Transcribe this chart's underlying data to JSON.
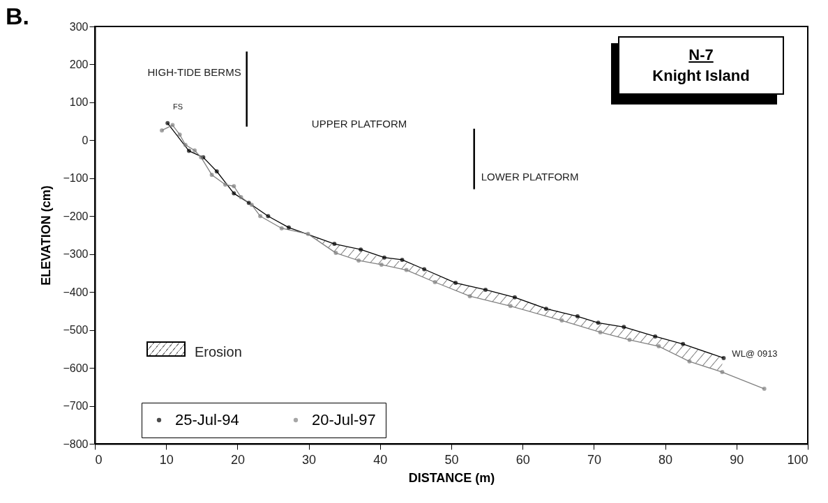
{
  "chart_data": {
    "type": "line",
    "title": "N-7",
    "subtitle": "Knight Island",
    "xlabel": "DISTANCE (m)",
    "ylabel": "ELEVATION (cm)",
    "xlim": [
      0,
      100
    ],
    "xticks": [
      0,
      10,
      20,
      30,
      40,
      50,
      60,
      70,
      80,
      90,
      100
    ],
    "ylim": [
      -800,
      300
    ],
    "yticks": [
      -800,
      -700,
      -600,
      -500,
      -400,
      -300,
      -200,
      -100,
      0,
      100,
      200,
      300
    ],
    "grid": false,
    "legend": "bottom left",
    "line_style": "solid",
    "series": [
      {
        "name": "25-Jul-94",
        "color": "#000000",
        "marker": "circle",
        "x": [
          10.2,
          13.2,
          15.2,
          17.1,
          19.5,
          21.6,
          24.3,
          27.2,
          33.6,
          37.3,
          40.6,
          43.1,
          46.2,
          50.6,
          54.8,
          58.9,
          63.3,
          67.7,
          70.6,
          74.2,
          78.6,
          82.5,
          88.2
        ],
        "values": [
          45,
          -28,
          -45,
          -82,
          -140,
          -165,
          -200,
          -230,
          -273,
          -288,
          -309,
          -315,
          -340,
          -376,
          -394,
          -414,
          -444,
          -464,
          -481,
          -492,
          -517,
          -537,
          -574
        ]
      },
      {
        "name": "20-Jul-97",
        "color": "#808080",
        "marker": "circle",
        "x": [
          9.4,
          10.9,
          11.9,
          12.7,
          14.0,
          14.9,
          16.4,
          18.3,
          19.5,
          20.5,
          22.0,
          23.2,
          26.2,
          29.9,
          33.8,
          37.0,
          40.2,
          43.7,
          47.7,
          52.6,
          58.3,
          65.5,
          70.9,
          75.0,
          79.1,
          83.4,
          88.0,
          93.9
        ],
        "values": [
          26,
          40,
          15,
          -12,
          -27,
          -45,
          -91,
          -117,
          -121,
          -150,
          -170,
          -200,
          -232,
          -247,
          -297,
          -317,
          -328,
          -342,
          -374,
          -411,
          -437,
          -475,
          -506,
          -526,
          -543,
          -583,
          -611,
          -655
        ],
        "lower": [
          null,
          null,
          null,
          null,
          null,
          null,
          null,
          null,
          null,
          null,
          null,
          null,
          null,
          -247,
          -297,
          -317,
          -328,
          -342,
          -374,
          -411,
          -437,
          -475,
          -506,
          -526,
          -543,
          -583,
          -611,
          null
        ],
        "upper": [
          null,
          null,
          null,
          null,
          null,
          null,
          null,
          null,
          null,
          null,
          null,
          null,
          null,
          -247,
          -275,
          -290,
          -309,
          -322,
          -355,
          -385,
          -411,
          -453,
          -482,
          -495,
          -519,
          -545,
          -573,
          null
        ]
      }
    ],
    "ref_lines": [
      {
        "axis": "x",
        "value": 21.3,
        "label": "HIGH-TIDE BERMS"
      },
      {
        "axis": "x",
        "value": 53.2,
        "label": "LOWER PLATFORM"
      }
    ],
    "annotations": [
      "B.",
      "FS",
      "UPPER PLATFORM",
      "Erosion",
      {
        "text": "WL@ 0913",
        "x": 88,
        "y": -611
      }
    ]
  }
}
